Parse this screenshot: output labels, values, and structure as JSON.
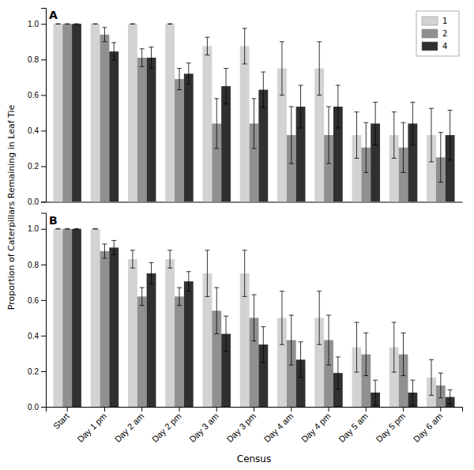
{
  "chart_data": [
    {
      "type": "bar",
      "title": "A",
      "ylabel": "Proportion of Caterpillars Remaining in Leaf Tie",
      "categories": [
        "Start",
        "Day 1 pm",
        "Day 2 am",
        "Day 2 pm",
        "Day 3 am",
        "Day 3 pm",
        "Day 4 am",
        "Day 4 pm",
        "Day 5 am",
        "Day 5 pm",
        "Day 6 am"
      ],
      "series": [
        {
          "name": "1",
          "color": "#d3d3d3",
          "values": [
            1.0,
            1.0,
            1.0,
            1.0,
            0.875,
            0.875,
            0.75,
            0.75,
            0.375,
            0.375,
            0.375
          ],
          "errors": [
            0.0,
            0.0,
            0.0,
            0.0,
            0.05,
            0.1,
            0.15,
            0.15,
            0.13,
            0.13,
            0.15
          ]
        },
        {
          "name": "2",
          "color": "#909090",
          "values": [
            1.0,
            0.94,
            0.81,
            0.69,
            0.44,
            0.44,
            0.375,
            0.375,
            0.305,
            0.305,
            0.25
          ],
          "errors": [
            0.0,
            0.04,
            0.05,
            0.06,
            0.14,
            0.14,
            0.16,
            0.16,
            0.14,
            0.14,
            0.14
          ]
        },
        {
          "name": "4",
          "color": "#303030",
          "values": [
            1.0,
            0.845,
            0.81,
            0.72,
            0.65,
            0.63,
            0.535,
            0.535,
            0.44,
            0.44,
            0.375
          ],
          "errors": [
            0.0,
            0.05,
            0.06,
            0.06,
            0.1,
            0.1,
            0.12,
            0.12,
            0.12,
            0.12,
            0.14
          ]
        }
      ],
      "ylim": [
        0.0,
        1.09
      ],
      "yticks": [
        {
          "value": 0,
          "label": "0.0"
        },
        0.2,
        0.4,
        0.6,
        0.8,
        {
          "value": 1,
          "label": "1.0"
        }
      ],
      "legend": "upper right",
      "tick_labels": "y"
    },
    {
      "type": "bar",
      "title": "B",
      "xlabel": "Census",
      "categories": [
        "Start",
        "Day 1 pm",
        "Day 2 am",
        "Day 2 pm",
        "Day 3 am",
        "Day 3 pm",
        "Day 4 am",
        "Day 4 pm",
        "Day 5 am",
        "Day 5 pm",
        "Day 6 am"
      ],
      "series": [
        {
          "name": "1",
          "color": "#d3d3d3",
          "values": [
            1.0,
            1.0,
            0.83,
            0.83,
            0.75,
            0.75,
            0.5,
            0.5,
            0.335,
            0.335,
            0.165
          ],
          "errors": [
            0.0,
            0.0,
            0.05,
            0.05,
            0.13,
            0.13,
            0.15,
            0.15,
            0.14,
            0.14,
            0.1
          ]
        },
        {
          "name": "2",
          "color": "#909090",
          "values": [
            1.0,
            0.875,
            0.62,
            0.62,
            0.54,
            0.5,
            0.375,
            0.375,
            0.295,
            0.295,
            0.12
          ],
          "errors": [
            0.0,
            0.04,
            0.05,
            0.05,
            0.13,
            0.13,
            0.14,
            0.14,
            0.12,
            0.12,
            0.07
          ]
        },
        {
          "name": "4",
          "color": "#303030",
          "values": [
            1.0,
            0.895,
            0.75,
            0.705,
            0.41,
            0.35,
            0.265,
            0.19,
            0.08,
            0.08,
            0.055
          ],
          "errors": [
            0.0,
            0.04,
            0.06,
            0.055,
            0.1,
            0.1,
            0.1,
            0.09,
            0.07,
            0.07,
            0.04
          ]
        }
      ],
      "ylim": [
        0.0,
        1.09
      ],
      "yticks": [
        {
          "value": 0,
          "label": "0.0"
        },
        0.2,
        0.4,
        0.6,
        0.8,
        {
          "value": 1,
          "label": "1.0"
        }
      ]
    }
  ]
}
